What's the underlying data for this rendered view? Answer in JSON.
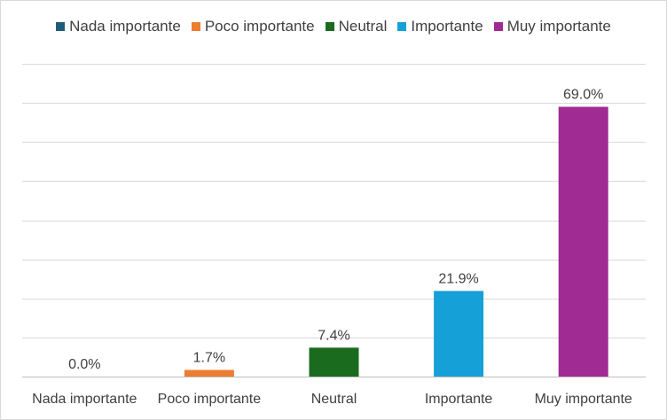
{
  "chart_data": {
    "type": "bar",
    "categories": [
      "Nada importante",
      "Poco importante",
      "Neutral",
      "Importante",
      "Muy importante"
    ],
    "values": [
      0.0,
      1.7,
      7.4,
      21.9,
      69.0
    ],
    "data_labels": [
      "0.0%",
      "1.7%",
      "7.4%",
      "21.9%",
      "69.0%"
    ],
    "colors": [
      "#1f5c7a",
      "#ed7d31",
      "#1b6b1f",
      "#15a0d8",
      "#a02b93"
    ],
    "legend": [
      "Nada importante",
      "Poco importante",
      "Neutral",
      "Importante",
      "Muy importante"
    ],
    "legend_position": "top",
    "ylim": [
      0,
      80
    ],
    "grid": true,
    "title": "",
    "xlabel": "",
    "ylabel": ""
  }
}
